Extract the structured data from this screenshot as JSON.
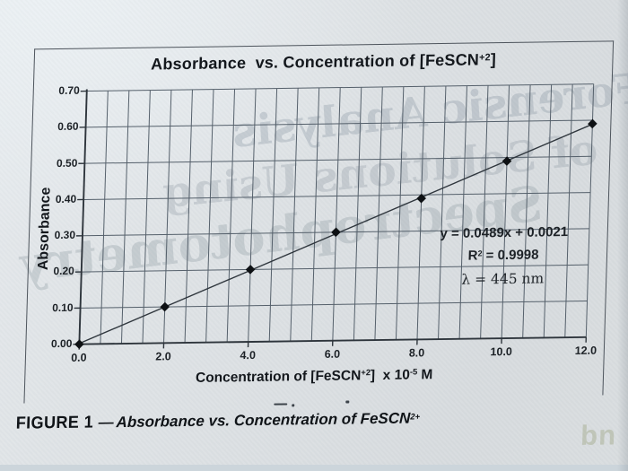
{
  "page": {
    "ghost_lines": [
      "Forensic Analysis",
      "of Solutions Using",
      "Spectrophotometry"
    ],
    "watermark": "bn"
  },
  "caption": {
    "label": "FIGURE 1",
    "dash": "—",
    "text": "Absorbance vs. Concentration of FeSCN",
    "sup": "2+"
  },
  "chart": {
    "title_parts": {
      "pre": "Absorbance  vs. Concentration of [FeSCN",
      "sup": "+2",
      "post": "]"
    },
    "ylabel": "Absorbance",
    "xlabel_parts": {
      "p1": "Concentration of [FeSCN",
      "s1": "+2",
      "p2": "]  x 10",
      "s2": "-5",
      "p3": " M"
    },
    "annotation": {
      "equation": "y = 0.0489x + 0.0021",
      "r2_base": "R",
      "r2_sup": "2",
      "r2_rest": " = 0.9998",
      "lambda": "λ = 445 nm"
    }
  },
  "chart_data": {
    "type": "scatter",
    "title": "Absorbance vs. Concentration of [FeSCN+2]",
    "xlabel": "Concentration of [FeSCN+2] x 10^-5 M",
    "ylabel": "Absorbance",
    "x": [
      0.0,
      2.0,
      4.0,
      6.0,
      8.0,
      10.0,
      12.0
    ],
    "y": [
      0.0,
      0.1,
      0.2,
      0.3,
      0.39,
      0.49,
      0.59
    ],
    "fit": {
      "equation": "y = 0.0489x + 0.0021",
      "slope": 0.0489,
      "intercept": 0.0021,
      "r_squared": 0.9998,
      "wavelength": "445 nm"
    },
    "xlim": [
      0,
      12
    ],
    "ylim": [
      0,
      0.7
    ],
    "x_major_step": 2,
    "x_minor_step": 0.5,
    "y_step": 0.1,
    "x_tick_labels": [
      "0.0",
      "2.0",
      "4.0",
      "6.0",
      "8.0",
      "10.0",
      "12.0"
    ],
    "y_tick_labels": [
      "0.00",
      "0.10",
      "0.20",
      "0.30",
      "0.40",
      "0.50",
      "0.60",
      "0.70"
    ],
    "grid": true,
    "legend": false,
    "marker": "diamond",
    "colors": {
      "grid": "#55606b",
      "axis": "#2e353c",
      "line": "#2f363d",
      "point": "#0e1114",
      "text": "#191e24"
    }
  }
}
